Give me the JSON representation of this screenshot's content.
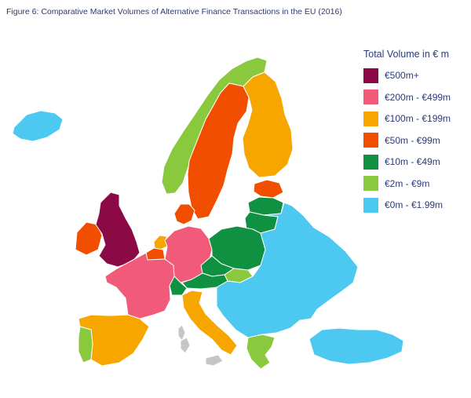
{
  "title": "Figure 6: Comparative Market Volumes of Alternative Finance Transactions in the EU (2016)",
  "legend": {
    "title": "Total Volume in € m",
    "items": [
      {
        "label": "€500m+",
        "color": "#8b0a46"
      },
      {
        "label": "€200m - €499m",
        "color": "#f25a7a"
      },
      {
        "label": "€100m - €199m",
        "color": "#f7a600"
      },
      {
        "label": "€50m - €99m",
        "color": "#f24e00"
      },
      {
        "label": "€10m - €49m",
        "color": "#109142"
      },
      {
        "label": "€2m - €9m",
        "color": "#8ac83e"
      },
      {
        "label": "€0m - €1.99m",
        "color": "#4dc8f0"
      }
    ]
  },
  "no_data_color": "#c6c6c6",
  "border_color": "#ffffff",
  "regions": {
    "iceland": "€0m - €1.99m",
    "norway": "€2m - €9m",
    "sweden": "€50m - €99m",
    "finland": "€100m - €199m",
    "denmark": "€50m - €99m",
    "estonia": "€50m - €99m",
    "latvia": "€10m - €49m",
    "lithuania": "€10m - €49m",
    "uk": "€500m+",
    "ireland": "€50m - €99m",
    "netherlands": "€100m - €199m",
    "belgium": "€50m - €99m",
    "france": "€200m - €499m",
    "germany": "€200m - €499m",
    "poland": "€10m - €49m",
    "czechia": "€10m - €49m",
    "austria": "€10m - €49m",
    "slovakia": "€2m - €9m",
    "switzerland": "€10m - €49m",
    "spain": "€100m - €199m",
    "portugal": "€2m - €9m",
    "italy": "€100m - €199m",
    "greece": "€2m - €9m",
    "eastern_europe": "€0m - €1.99m",
    "turkey": "€0m - €1.99m"
  }
}
